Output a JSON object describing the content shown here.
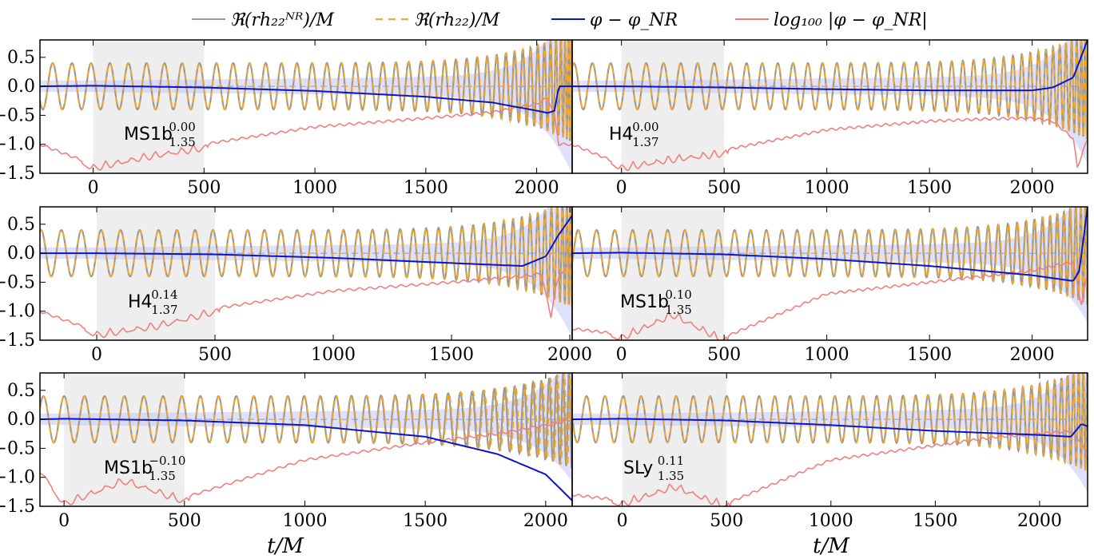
{
  "chart_data": [
    {
      "type": "line",
      "panel": "MS1b",
      "label": {
        "base": "MS1b",
        "sub": "1.35",
        "sup": "0.00"
      },
      "xticks": [
        "0",
        "500",
        "1000",
        "1500",
        "2000"
      ],
      "yticks": [
        "0.5",
        "0.0",
        "−0.5",
        "−1.0",
        "−1.5"
      ],
      "xlim": [
        -240,
        2160
      ],
      "ylim": [
        -1.5,
        0.8
      ],
      "shaded_x": [
        0,
        500
      ],
      "merger_t": 2100,
      "phase_diff": {
        "t": [
          -240,
          0,
          500,
          1000,
          1500,
          1800,
          2000,
          2050,
          2080,
          2100
        ],
        "values": [
          0.0,
          0.01,
          -0.02,
          -0.08,
          -0.18,
          -0.28,
          -0.42,
          -0.46,
          -0.42,
          0.0
        ]
      },
      "log_error": {
        "t": [
          -240,
          0,
          250,
          500,
          1000,
          1500,
          1800,
          2000,
          2050,
          2080,
          2100
        ],
        "values": [
          -1.0,
          -1.35,
          -1.15,
          -1.0,
          -0.7,
          -0.55,
          -0.45,
          -0.3,
          -0.2,
          -0.5,
          -1.0
        ]
      }
    },
    {
      "type": "line",
      "panel": "H4",
      "label": {
        "base": "H4",
        "sub": "1.37",
        "sup": "0.00"
      },
      "xticks": [
        "0",
        "500",
        "1000",
        "1500",
        "2000"
      ],
      "yticks": [
        "0.5",
        "0.0",
        "−0.5",
        "−1.0",
        "−1.5"
      ],
      "xlim": [
        -240,
        2270
      ],
      "ylim": [
        -1.5,
        0.8
      ],
      "shaded_x": [
        0,
        500
      ],
      "merger_t": 2230,
      "phase_diff": {
        "t": [
          -240,
          0,
          500,
          1000,
          1500,
          2000,
          2100,
          2200,
          2270
        ],
        "values": [
          0.0,
          0.0,
          -0.02,
          -0.05,
          -0.07,
          -0.07,
          -0.02,
          0.15,
          0.8
        ]
      },
      "log_error": {
        "t": [
          -240,
          0,
          250,
          500,
          1000,
          1500,
          1800,
          2000,
          2100,
          2200,
          2220,
          2270
        ],
        "values": [
          -1.0,
          -1.35,
          -1.2,
          -1.1,
          -0.75,
          -0.6,
          -0.56,
          -0.55,
          -0.6,
          -0.9,
          -1.4,
          -0.9
        ]
      }
    },
    {
      "type": "line",
      "panel": "H4",
      "label": {
        "base": "H4",
        "sub": "1.37",
        "sup": "0.14"
      },
      "xticks": [
        "0",
        "500",
        "1000",
        "1500",
        "2000"
      ],
      "yticks": [
        "0.5",
        "0.0",
        "−0.5",
        "−1.0",
        "−1.5"
      ],
      "xlim": [
        -240,
        2010
      ],
      "ylim": [
        -1.5,
        0.8
      ],
      "shaded_x": [
        0,
        500
      ],
      "merger_t": 1960,
      "phase_diff": {
        "t": [
          -240,
          0,
          500,
          1000,
          1500,
          1800,
          1900,
          1950,
          2010
        ],
        "values": [
          0.0,
          0.0,
          -0.02,
          -0.08,
          -0.17,
          -0.22,
          -0.05,
          0.3,
          0.65
        ]
      },
      "log_error": {
        "t": [
          -240,
          0,
          250,
          500,
          1000,
          1500,
          1800,
          1880,
          1920,
          1940,
          1960,
          2010
        ],
        "values": [
          -1.0,
          -1.35,
          -1.2,
          -0.95,
          -0.65,
          -0.5,
          -0.4,
          -0.35,
          -1.1,
          -0.6,
          -0.35,
          -0.15
        ]
      }
    },
    {
      "type": "line",
      "panel": "MS1b",
      "label": {
        "base": "MS1b",
        "sub": "1.35",
        "sup": "0.10"
      },
      "xticks": [
        "0",
        "500",
        "1000",
        "1500",
        "2000"
      ],
      "yticks": [
        "0.5",
        "0.0",
        "−0.5",
        "−1.0",
        "−1.5"
      ],
      "xlim": [
        -240,
        2270
      ],
      "ylim": [
        -1.5,
        0.8
      ],
      "shaded_x": [
        0,
        500
      ],
      "merger_t": 2250,
      "phase_diff": {
        "t": [
          -240,
          0,
          500,
          1000,
          1500,
          2000,
          2200,
          2230,
          2270
        ],
        "values": [
          0.0,
          0.01,
          -0.02,
          -0.1,
          -0.22,
          -0.38,
          -0.48,
          -0.3,
          0.8
        ]
      },
      "log_error": {
        "t": [
          -240,
          0,
          250,
          500,
          1000,
          1500,
          2000,
          2200,
          2240,
          2270
        ],
        "values": [
          -1.3,
          -1.4,
          -1.0,
          -1.45,
          -0.7,
          -0.5,
          -0.3,
          -0.15,
          -0.9,
          -0.3
        ]
      }
    },
    {
      "type": "line",
      "panel": "MS1b",
      "label": {
        "base": "MS1b",
        "sub": "1.35",
        "sup": "−0.10"
      },
      "xticks": [
        "0",
        "500",
        "1000",
        "1500",
        "2000"
      ],
      "yticks": [
        "0.5",
        "0.0",
        "−0.5",
        "−1.0",
        "−1.5"
      ],
      "xlim": [
        -100,
        2110
      ],
      "ylim": [
        -1.5,
        0.8
      ],
      "shaded_x": [
        0,
        500
      ],
      "merger_t": 2110,
      "phase_diff": {
        "t": [
          -100,
          0,
          500,
          1000,
          1500,
          1800,
          2000,
          2110
        ],
        "values": [
          0.0,
          0.01,
          -0.02,
          -0.1,
          -0.3,
          -0.6,
          -0.95,
          -1.4
        ]
      },
      "log_error": {
        "t": [
          -100,
          0,
          250,
          500,
          1000,
          1500,
          1800,
          2000,
          2110
        ],
        "values": [
          -0.9,
          -1.4,
          -1.0,
          -1.35,
          -0.7,
          -0.4,
          -0.25,
          -0.1,
          0.0
        ]
      }
    },
    {
      "type": "line",
      "panel": "SLy",
      "label": {
        "base": "SLy",
        "sub": "1.35",
        "sup": "0.11"
      },
      "xticks": [
        "0",
        "500",
        "1000",
        "1500",
        "2000"
      ],
      "yticks": [
        "0.5",
        "0.0",
        "−0.5",
        "−1.0",
        "−1.5"
      ],
      "xlim": [
        -240,
        2230
      ],
      "ylim": [
        -1.5,
        0.8
      ],
      "shaded_x": [
        0,
        500
      ],
      "merger_t": 2200,
      "phase_diff": {
        "t": [
          -240,
          0,
          500,
          1000,
          1500,
          2000,
          2150,
          2200,
          2230
        ],
        "values": [
          0.0,
          0.01,
          -0.02,
          -0.1,
          -0.2,
          -0.27,
          -0.3,
          -0.08,
          -0.12
        ]
      },
      "log_error": {
        "t": [
          -240,
          0,
          250,
          500,
          1000,
          1500,
          1800,
          2000,
          2150,
          2200,
          2230
        ],
        "values": [
          -1.3,
          -1.4,
          -1.1,
          -1.45,
          -0.7,
          -0.45,
          -0.3,
          -0.25,
          -0.2,
          -0.4,
          -0.7
        ]
      }
    }
  ],
  "legend": [
    {
      "label": "ℜ(rh₂₂ᴺᴿ)/M",
      "color": "#999999",
      "dash": "solid"
    },
    {
      "label": "ℜ(rh₂₂)/M",
      "color": "#f5a623",
      "dash": "dashed"
    },
    {
      "label": "φ − φ_NR",
      "color": "#0a15c8",
      "dash": "solid"
    },
    {
      "label": "log₁₀₀ |φ − φ_NR|",
      "color": "#f08080",
      "dash": "solid"
    }
  ],
  "xlabel": "t/M",
  "colors": {
    "nr": "#999999",
    "model": "#f5a623",
    "phase": "#0a15c8",
    "error": "#f08080",
    "band": "#c9ccf5",
    "shade": "#eeeeee"
  }
}
